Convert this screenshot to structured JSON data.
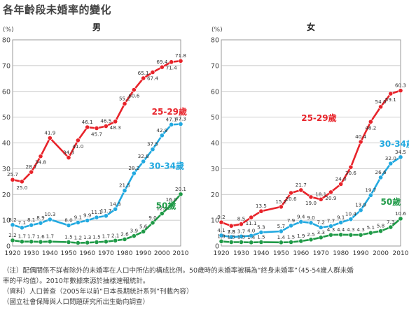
{
  "page": {
    "title": "各年齡段未婚率的變化"
  },
  "chart_data": [
    {
      "type": "line",
      "title": "男",
      "ylabel": "(%)",
      "ylim": [
        0,
        80
      ],
      "yticks": [
        0,
        10,
        20,
        30,
        40,
        50,
        60,
        70,
        80
      ],
      "x": [
        1920,
        1925,
        1930,
        1935,
        1940,
        1945,
        1950,
        1955,
        1960,
        1965,
        1970,
        1975,
        1980,
        1985,
        1990,
        1995,
        2000,
        2005,
        2010
      ],
      "xticks": [
        1920,
        1930,
        1940,
        1950,
        1960,
        1970,
        1980,
        1990,
        2000,
        2010
      ],
      "grid": true,
      "series": [
        {
          "name": "25-29歲",
          "color": "#e8232a",
          "values": [
            25.7,
            25.0,
            28.7,
            34.8,
            41.9,
            null,
            34.3,
            41.0,
            46.1,
            45.7,
            46.5,
            48.3,
            55.2,
            60.6,
            65.1,
            67.4,
            69.4,
            71.4,
            71.8
          ],
          "labels": [
            "25.7",
            "25.0",
            "28.7",
            "34.8",
            "41.9",
            "",
            "34.3",
            "41.0",
            "46.1",
            "45.7",
            "46.5",
            "48.3",
            "55.2",
            "60.6",
            "65.1",
            "67.4",
            "69.4",
            "71.4",
            "71.8"
          ]
        },
        {
          "name": "30-34歲",
          "color": "#22a9e0",
          "values": [
            8.2,
            7.1,
            8.1,
            8.9,
            10.3,
            null,
            8.0,
            9.1,
            9.9,
            11.1,
            11.7,
            14.3,
            21.5,
            28.2,
            32.8,
            37.5,
            42.9,
            47.1,
            47.3
          ],
          "labels": [
            "8.2",
            "7.1",
            "8.1",
            "8.9",
            "10.3",
            "",
            "8.0",
            "9.1",
            "9.9",
            "11.1",
            "11.7",
            "14.3",
            "21.5",
            "28.2",
            "32.8",
            "37.5",
            "42.9",
            "47.1",
            "47.3"
          ]
        },
        {
          "name": "50歲",
          "color": "#1f9a47",
          "values": [
            2.2,
            1.7,
            1.7,
            1.6,
            1.7,
            null,
            1.5,
            1.2,
            1.3,
            1.5,
            1.7,
            2.1,
            2.6,
            3.9,
            5.6,
            9.0,
            12.6,
            16.0,
            20.1
          ],
          "labels": [
            "2.2",
            "1.7",
            "1.7",
            "1.6",
            "1.7",
            "",
            "1.5",
            "1.2",
            "1.3",
            "1.5",
            "1.7",
            "2.1",
            "2.6",
            "3.9",
            "5.6",
            "9.0",
            "12.6",
            "16.0",
            "20.1"
          ]
        }
      ]
    },
    {
      "type": "line",
      "title": "女",
      "ylabel": "(%)",
      "ylim": [
        0,
        80
      ],
      "yticks": [
        0,
        10,
        20,
        30,
        40,
        50,
        60,
        70,
        80
      ],
      "x": [
        1920,
        1925,
        1930,
        1935,
        1940,
        1945,
        1950,
        1955,
        1960,
        1965,
        1970,
        1975,
        1980,
        1985,
        1990,
        1995,
        2000,
        2005,
        2010
      ],
      "xticks": [
        1920,
        1930,
        1940,
        1950,
        1960,
        1970,
        1980,
        1990,
        2000,
        2010
      ],
      "grid": true,
      "series": [
        {
          "name": "25-29歲",
          "color": "#e8232a",
          "values": [
            9.2,
            7.8,
            8.5,
            11.1,
            13.5,
            null,
            15.2,
            20.6,
            21.7,
            19.0,
            18.1,
            20.9,
            24.0,
            30.6,
            40.4,
            48.2,
            54.0,
            59.1,
            60.3
          ],
          "labels": [
            "9.2",
            "7.8",
            "8.5",
            "11.1",
            "13.5",
            "",
            "15.2",
            "20.6",
            "21.7",
            "19.0",
            "18.1",
            "20.9",
            "24.0",
            "30.6",
            "40.4",
            "48.2",
            "54.0",
            "59.1",
            "60.3"
          ]
        },
        {
          "name": "30-34歲",
          "color": "#22a9e0",
          "values": [
            4.1,
            3.5,
            3.7,
            4.0,
            5.3,
            null,
            5.7,
            7.9,
            9.4,
            9.0,
            7.2,
            7.7,
            9.1,
            10.4,
            13.9,
            19.7,
            26.6,
            32.0,
            34.5
          ],
          "labels": [
            "4.1",
            "3.5",
            "3.7",
            "4.0",
            "5.3",
            "",
            "5.7",
            "7.9",
            "9.4",
            "9.0",
            "7.2",
            "7.7",
            "9.1",
            "10.4",
            "13.9",
            "19.7",
            "26.6",
            "32.0",
            "34.5"
          ]
        },
        {
          "name": "50歲",
          "color": "#1f9a47",
          "values": [
            1.8,
            1.5,
            1.5,
            1.4,
            1.5,
            null,
            1.4,
            1.5,
            1.9,
            2.5,
            3.3,
            4.3,
            4.4,
            4.3,
            4.3,
            5.1,
            5.8,
            7.3,
            10.6
          ],
          "labels": [
            "1.8",
            "1.5",
            "1.5",
            "1.4",
            "1.5",
            "",
            "1.4",
            "1.5",
            "1.9",
            "2.5",
            "3.3",
            "4.3",
            "4.4",
            "4.3",
            "4.3",
            "5.1",
            "5.8",
            "7.3",
            "10.6"
          ]
        }
      ]
    }
  ],
  "notes": [
    "（注）配偶關係不詳者除外的未婚率在人口中所佔的構成比例。50歲時的未婚率被稱為“終身未婚率”（45-54歲人群未婚",
    "率的平均值）。2010年數據來源於抽樣速報統計。",
    "（資料）人口普查（2005年以前“日本長期統計系列”刊載內容）",
    "（國立社會保障與人口問題研究所出生動向調查）"
  ]
}
